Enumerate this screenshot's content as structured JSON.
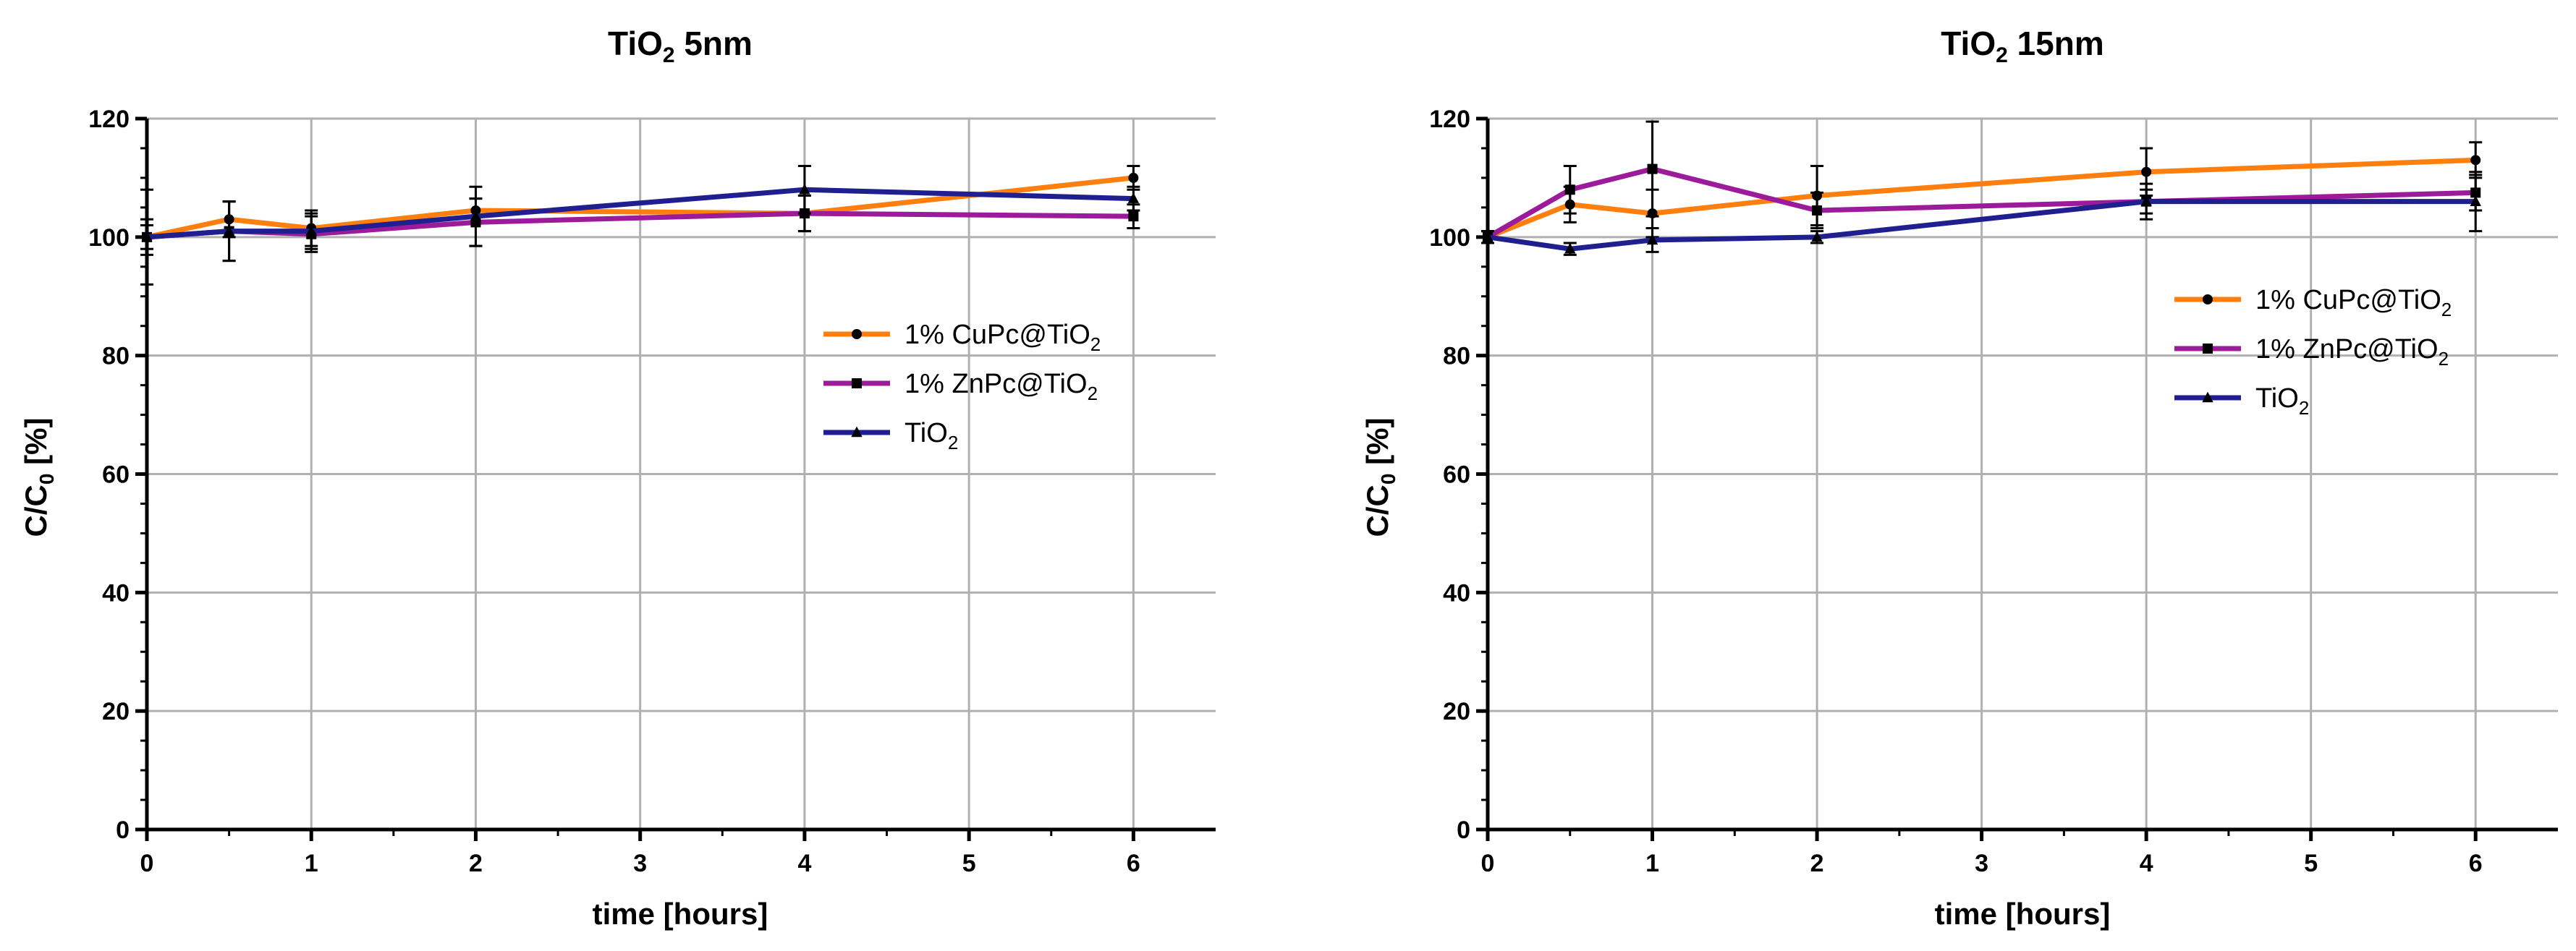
{
  "chart_data": [
    {
      "type": "line",
      "title": "TiO2 5nm",
      "title_main": "TiO",
      "title_sub": "2",
      "title_rest": " 5nm",
      "xlabel": "time [hours]",
      "ylabel_main": "C/C",
      "ylabel_sub": "0",
      "ylabel_rest": " [%]",
      "xlim": [
        0,
        6.5
      ],
      "ylim": [
        0,
        120
      ],
      "xticks": [
        0,
        1,
        2,
        3,
        4,
        5,
        6
      ],
      "yticks": [
        0,
        20,
        40,
        60,
        80,
        100,
        120
      ],
      "grid": true,
      "legend_position": "center-right",
      "series": [
        {
          "name": "1% CuPc@TiO2",
          "label_main": "1% CuPc@TiO",
          "label_sub": "2",
          "color": "#FF7F0E",
          "marker": "circle",
          "x": [
            0,
            0.5,
            1,
            2,
            4,
            6
          ],
          "y": [
            100,
            103,
            101.5,
            104.5,
            104,
            110
          ],
          "err": [
            2,
            3,
            3,
            2,
            3,
            2
          ]
        },
        {
          "name": "1% ZnPc@TiO2",
          "label_main": "1% ZnPc@TiO",
          "label_sub": "2",
          "color": "#9B1B9B",
          "marker": "square",
          "x": [
            0,
            0.5,
            1,
            2,
            4,
            6
          ],
          "y": [
            100,
            101,
            100.5,
            102.5,
            104,
            103.5
          ],
          "err": [
            3,
            5,
            3,
            4,
            3,
            2
          ]
        },
        {
          "name": "TiO2",
          "label_main": "TiO",
          "label_sub": "2",
          "color": "#1F1F8F",
          "marker": "triangle",
          "x": [
            0,
            0.5,
            1,
            2,
            4,
            6
          ],
          "y": [
            100,
            101,
            101,
            103.5,
            108,
            106.5
          ],
          "err": [
            8,
            5,
            3,
            5,
            4,
            2
          ]
        }
      ]
    },
    {
      "type": "line",
      "title": "TiO2 15nm",
      "title_main": "TiO",
      "title_sub": "2",
      "title_rest": " 15nm",
      "xlabel": "time [hours]",
      "ylabel_main": "C/C",
      "ylabel_sub": "0",
      "ylabel_rest": " [%]",
      "xlim": [
        0,
        6.5
      ],
      "ylim": [
        0,
        120
      ],
      "xticks": [
        0,
        1,
        2,
        3,
        4,
        5,
        6
      ],
      "yticks": [
        0,
        20,
        40,
        60,
        80,
        100,
        120
      ],
      "grid": true,
      "legend_position": "upper-right",
      "series": [
        {
          "name": "1% CuPc@TiO2",
          "label_main": "1% CuPc@TiO",
          "label_sub": "2",
          "color": "#FF7F0E",
          "marker": "circle",
          "x": [
            0,
            0.5,
            1,
            2,
            4,
            6
          ],
          "y": [
            100,
            105.5,
            104,
            107,
            111,
            113
          ],
          "err": [
            1,
            3,
            4,
            5,
            4,
            3
          ]
        },
        {
          "name": "1% ZnPc@TiO2",
          "label_main": "1% ZnPc@TiO",
          "label_sub": "2",
          "color": "#9B1B9B",
          "marker": "square",
          "x": [
            0,
            0.5,
            1,
            2,
            4,
            6
          ],
          "y": [
            100,
            108,
            111.5,
            104.5,
            106,
            107.5
          ],
          "err": [
            1,
            4,
            8,
            3,
            3,
            3
          ]
        },
        {
          "name": "TiO2",
          "label_main": "TiO",
          "label_sub": "2",
          "color": "#1F1F8F",
          "marker": "triangle",
          "x": [
            0,
            0.5,
            1,
            2,
            4,
            6
          ],
          "y": [
            100,
            98,
            99.5,
            100,
            106,
            106
          ],
          "err": [
            1,
            1,
            2,
            1,
            2,
            5
          ]
        }
      ]
    }
  ]
}
